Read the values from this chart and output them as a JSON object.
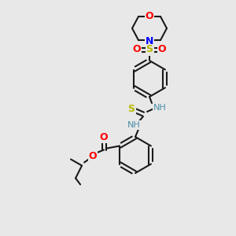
{
  "bg_color": "#e8e8e8",
  "bond_color": "#1a1a1a",
  "atom_colors": {
    "O": "#ff0000",
    "N": "#0000ff",
    "S": "#b8b800",
    "C": "#1a1a1a",
    "NH": "#4a8fa8"
  },
  "figsize": [
    3.0,
    3.0
  ],
  "dpi": 100
}
